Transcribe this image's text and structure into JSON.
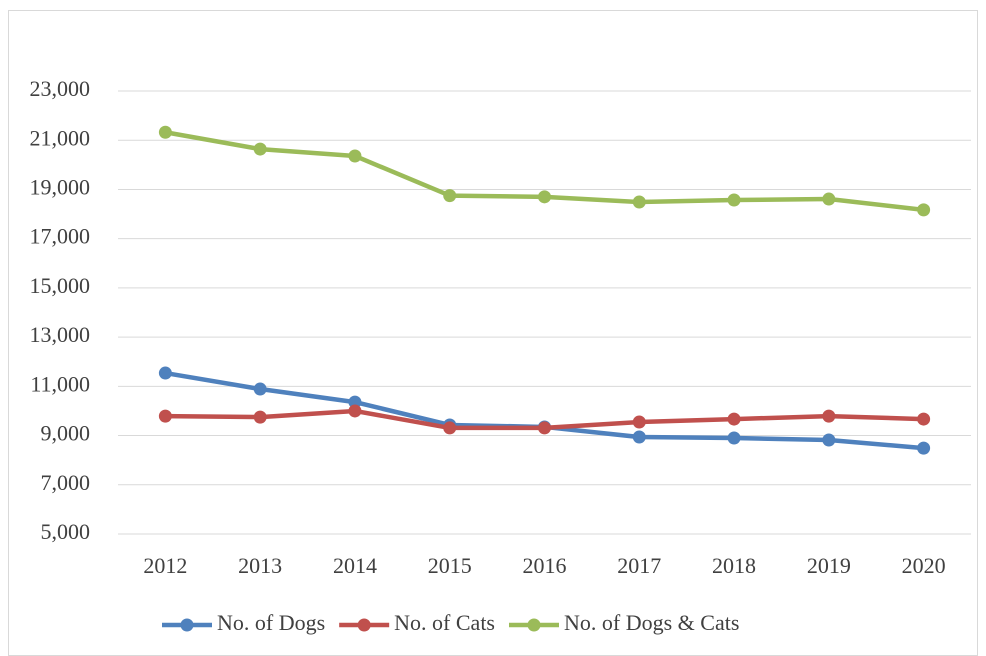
{
  "chart_data": {
    "type": "line",
    "categories": [
      "2012",
      "2013",
      "2014",
      "2015",
      "2016",
      "2017",
      "2018",
      "2019",
      "2020"
    ],
    "series": [
      {
        "name": "No. of Dogs",
        "color": "#4f81bd",
        "values": [
          11540,
          10890,
          10360,
          9430,
          9350,
          8940,
          8900,
          8820,
          8490
        ]
      },
      {
        "name": "No. of Cats",
        "color": "#c0504d",
        "values": [
          9790,
          9750,
          10000,
          9310,
          9310,
          9550,
          9670,
          9790,
          9670
        ]
      },
      {
        "name": "No. of Dogs & Cats",
        "color": "#9bbb59",
        "values": [
          21325,
          20640,
          20360,
          18750,
          18700,
          18490,
          18570,
          18610,
          18170
        ]
      }
    ],
    "ylim": [
      5000,
      23000
    ],
    "yticks": [
      {
        "value": 5000,
        "label": "5,000"
      },
      {
        "value": 7000,
        "label": "7,000"
      },
      {
        "value": 9000,
        "label": "9,000"
      },
      {
        "value": 11000,
        "label": "11,000"
      },
      {
        "value": 13000,
        "label": "13,000"
      },
      {
        "value": 15000,
        "label": "15,000"
      },
      {
        "value": 17000,
        "label": "17,000"
      },
      {
        "value": 19000,
        "label": "19,000"
      },
      {
        "value": 21000,
        "label": "21,000"
      },
      {
        "value": 23000,
        "label": "23,000"
      }
    ],
    "grid": true,
    "legend": "bottom"
  }
}
